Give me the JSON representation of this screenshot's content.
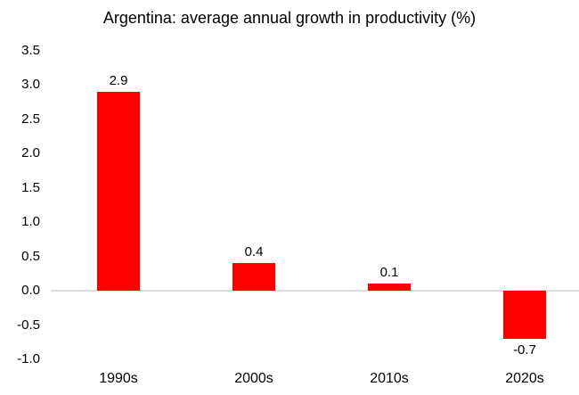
{
  "chart_data": {
    "type": "bar",
    "title": "Argentina: average annual growth in productivity (%)",
    "categories": [
      "1990s",
      "2000s",
      "2010s",
      "2020s"
    ],
    "values": [
      2.9,
      0.4,
      0.1,
      -0.7
    ],
    "data_labels": [
      "2.9",
      "0.4",
      "0.1",
      "-0.7"
    ],
    "series_name": "",
    "xlabel": "",
    "ylabel": "",
    "ylim": [
      -1.0,
      3.5
    ],
    "y_tick_step": 0.5,
    "y_ticks": [
      "3.5",
      "3.0",
      "2.5",
      "2.0",
      "1.5",
      "1.0",
      "0.5",
      "0.0",
      "-0.5",
      "-1.0"
    ],
    "y_tick_values": [
      3.5,
      3.0,
      2.5,
      2.0,
      1.5,
      1.0,
      0.5,
      0.0,
      -0.5,
      -1.0
    ],
    "grid": false,
    "legend": false,
    "bar_color": "#FF0000",
    "axis_line_color": "#DCDCDC",
    "text_color": "#000000",
    "background_color": "#FFFFFF"
  }
}
